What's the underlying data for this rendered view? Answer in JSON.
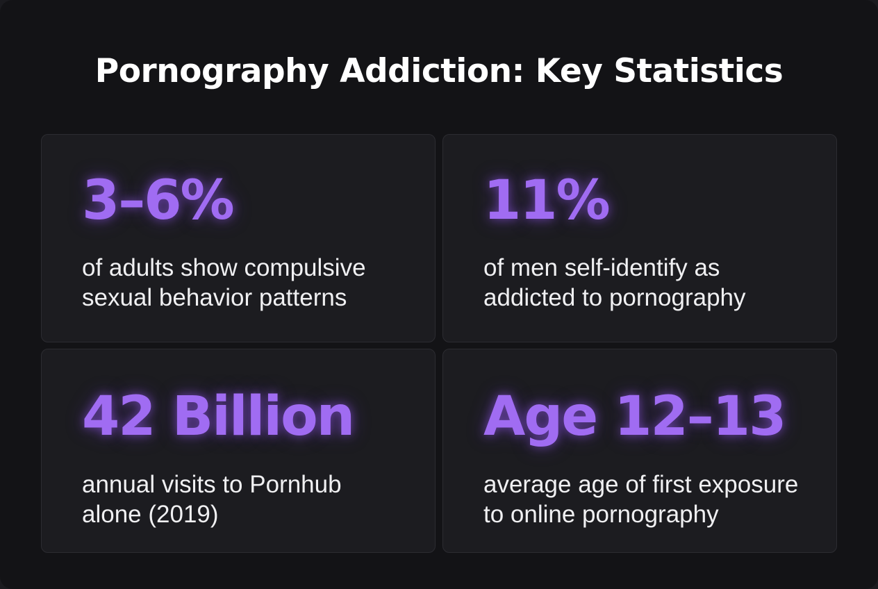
{
  "title": "Pornography Addiction: Key Statistics",
  "colors": {
    "accent": "#a06cf2",
    "background": "#131316",
    "card": "#1c1c20",
    "text": "#ffffff"
  },
  "cards": [
    {
      "stat": "3–6%",
      "line1": "of adults show compulsive",
      "line2": "sexual behavior patterns"
    },
    {
      "stat": "11%",
      "line1": "of men self-identify as",
      "line2": "addicted to pornography"
    },
    {
      "stat": "42 Billion",
      "line1": "annual visits to Pornhub",
      "line2": "alone (2019)"
    },
    {
      "stat": "Age 12–13",
      "line1": "average age of first exposure",
      "line2": "to online pornography"
    }
  ]
}
